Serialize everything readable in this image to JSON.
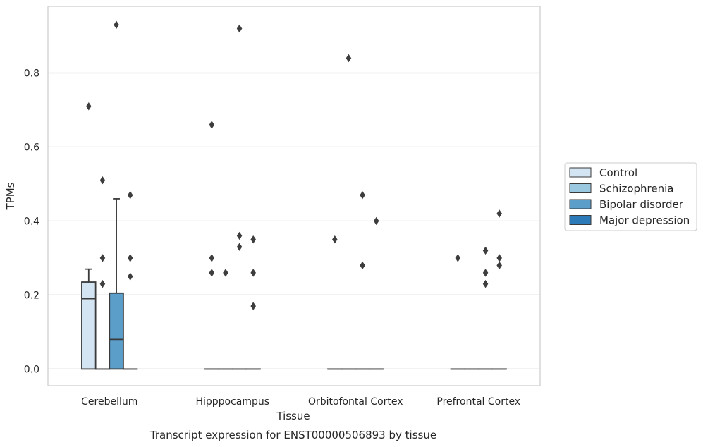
{
  "chart_data": {
    "type": "box",
    "title": "",
    "caption": "Transcript expression for ENST00000506893 by tissue",
    "xlabel": "Tissue",
    "ylabel": "TPMs",
    "ylim": [
      -0.045,
      0.98
    ],
    "yticks": [
      0.0,
      0.2,
      0.4,
      0.6,
      0.8
    ],
    "ytick_labels": [
      "0.0",
      "0.2",
      "0.4",
      "0.6",
      "0.8"
    ],
    "grid": "horizontal",
    "legend_position": "right",
    "categories": [
      "Cerebellum",
      "Hipppocampus",
      "Orbitofontal Cortex",
      "Prefrontal Cortex"
    ],
    "series": [
      {
        "name": "Control",
        "color": "#d3e4f3",
        "boxes": [
          {
            "q1": 0.0,
            "median": 0.19,
            "q3": 0.235,
            "whisker_low": 0.0,
            "whisker_high": 0.27,
            "outliers": [
              0.71
            ]
          },
          {
            "q1": 0.0,
            "median": 0.0,
            "q3": 0.0,
            "whisker_low": 0.0,
            "whisker_high": 0.0,
            "outliers": [
              0.66,
              0.3,
              0.26
            ]
          },
          {
            "q1": 0.0,
            "median": 0.0,
            "q3": 0.0,
            "whisker_low": 0.0,
            "whisker_high": 0.0,
            "outliers": [
              0.35
            ]
          },
          {
            "q1": 0.0,
            "median": 0.0,
            "q3": 0.0,
            "whisker_low": 0.0,
            "whisker_high": 0.0,
            "outliers": [
              0.3
            ]
          }
        ]
      },
      {
        "name": "Schizophrenia",
        "color": "#9ac8e0",
        "boxes": [
          {
            "q1": 0.0,
            "median": 0.0,
            "q3": 0.0,
            "whisker_low": 0.0,
            "whisker_high": 0.0,
            "outliers": [
              0.51,
              0.3,
              0.23
            ]
          },
          {
            "q1": 0.0,
            "median": 0.0,
            "q3": 0.0,
            "whisker_low": 0.0,
            "whisker_high": 0.0,
            "outliers": [
              0.26
            ]
          },
          {
            "q1": 0.0,
            "median": 0.0,
            "q3": 0.0,
            "whisker_low": 0.0,
            "whisker_high": 0.0,
            "outliers": [
              0.84
            ]
          },
          {
            "q1": 0.0,
            "median": 0.0,
            "q3": 0.0,
            "whisker_low": 0.0,
            "whisker_high": 0.0,
            "outliers": []
          }
        ]
      },
      {
        "name": "Bipolar disorder",
        "color": "#5a9ec9",
        "boxes": [
          {
            "q1": 0.0,
            "median": 0.08,
            "q3": 0.205,
            "whisker_low": 0.0,
            "whisker_high": 0.46,
            "outliers": [
              0.93
            ]
          },
          {
            "q1": 0.0,
            "median": 0.0,
            "q3": 0.0,
            "whisker_low": 0.0,
            "whisker_high": 0.0,
            "outliers": [
              0.92,
              0.36,
              0.33
            ]
          },
          {
            "q1": 0.0,
            "median": 0.0,
            "q3": 0.0,
            "whisker_low": 0.0,
            "whisker_high": 0.0,
            "outliers": [
              0.47,
              0.28
            ]
          },
          {
            "q1": 0.0,
            "median": 0.0,
            "q3": 0.0,
            "whisker_low": 0.0,
            "whisker_high": 0.0,
            "outliers": [
              0.32,
              0.26,
              0.23
            ]
          }
        ]
      },
      {
        "name": "Major depression",
        "color": "#2d7ab8",
        "boxes": [
          {
            "q1": 0.0,
            "median": 0.0,
            "q3": 0.0,
            "whisker_low": 0.0,
            "whisker_high": 0.0,
            "outliers": [
              0.47,
              0.3,
              0.25
            ]
          },
          {
            "q1": 0.0,
            "median": 0.0,
            "q3": 0.0,
            "whisker_low": 0.0,
            "whisker_high": 0.0,
            "outliers": [
              0.35,
              0.26,
              0.17
            ]
          },
          {
            "q1": 0.0,
            "median": 0.0,
            "q3": 0.0,
            "whisker_low": 0.0,
            "whisker_high": 0.0,
            "outliers": [
              0.4
            ]
          },
          {
            "q1": 0.0,
            "median": 0.0,
            "q3": 0.0,
            "whisker_low": 0.0,
            "whisker_high": 0.0,
            "outliers": [
              0.42,
              0.3,
              0.28
            ]
          }
        ]
      }
    ]
  }
}
